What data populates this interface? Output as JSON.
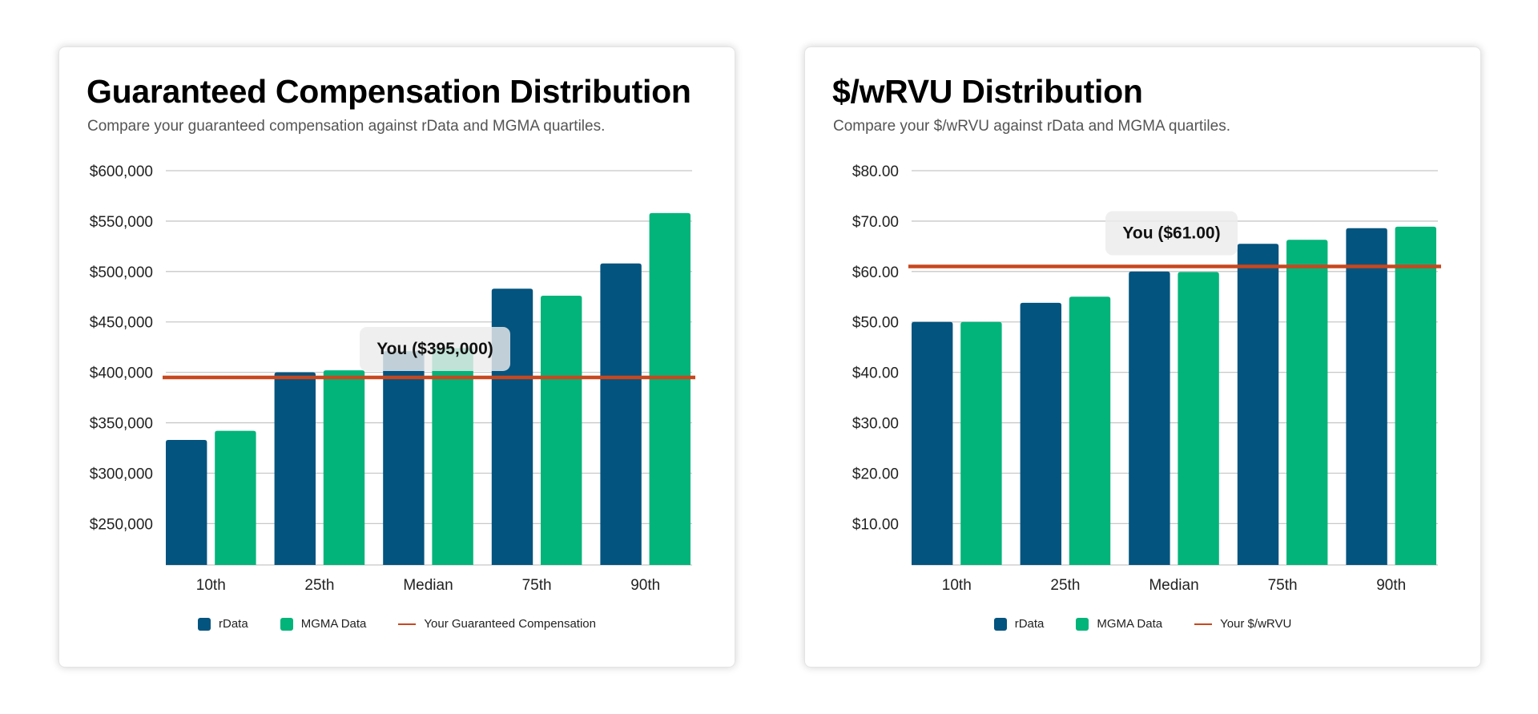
{
  "colors": {
    "rdata": "#03547F",
    "mgma": "#02B47A",
    "you_line": "#C8471F",
    "grid": "#c8c8c8"
  },
  "chart_data": [
    {
      "type": "bar",
      "title": "Guaranteed Compensation Distribution",
      "subtitle": "Compare your guaranteed compensation against rData and MGMA quartiles.",
      "categories": [
        "10th",
        "25th",
        "Median",
        "75th",
        "90th"
      ],
      "series": [
        {
          "name": "rData",
          "values": [
            333000,
            400000,
            421000,
            483000,
            508000
          ]
        },
        {
          "name": "MGMA Data",
          "values": [
            342000,
            402000,
            424000,
            476000,
            558000
          ]
        }
      ],
      "reference_line": {
        "name": "Your Guaranteed Compensation",
        "value": 395000,
        "label": "You ($395,000)"
      },
      "yticks": [
        250000,
        300000,
        350000,
        400000,
        450000,
        500000,
        550000,
        600000
      ],
      "ytick_labels": [
        "$250,000",
        "$300,000",
        "$350,000",
        "$400,000",
        "$450,000",
        "$500,000",
        "$550,000",
        "$600,000"
      ],
      "ylim": [
        209000,
        600000
      ],
      "grid": true,
      "legend": "bottom"
    },
    {
      "type": "bar",
      "title": "$/wRVU Distribution",
      "subtitle": "Compare your $/wRVU against rData and MGMA quartiles.",
      "categories": [
        "10th",
        "25th",
        "Median",
        "75th",
        "90th"
      ],
      "series": [
        {
          "name": "rData",
          "values": [
            50.0,
            53.8,
            60.0,
            65.5,
            68.6
          ]
        },
        {
          "name": "MGMA Data",
          "values": [
            50.0,
            55.0,
            59.9,
            66.3,
            68.9
          ]
        }
      ],
      "reference_line": {
        "name": "Your $/wRVU",
        "value": 61.0,
        "label": "You ($61.00)"
      },
      "yticks": [
        10,
        20,
        30,
        40,
        50,
        60,
        70,
        80
      ],
      "ytick_labels": [
        "$10.00",
        "$20.00",
        "$30.00",
        "$40.00",
        "$50.00",
        "$60.00",
        "$70.00",
        "$80.00"
      ],
      "ylim": [
        1.8,
        80
      ],
      "grid": true,
      "legend": "bottom"
    }
  ]
}
